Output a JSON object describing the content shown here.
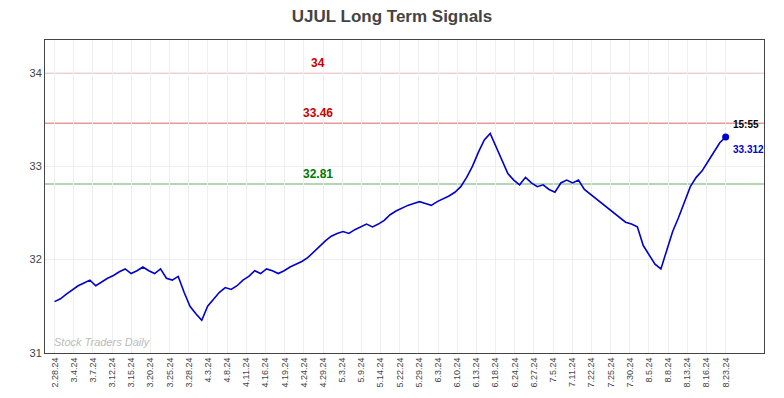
{
  "chart_data": {
    "type": "line",
    "title": "UJUL Long Term Signals",
    "x": [
      0,
      0.307,
      0.614,
      0.9211,
      1.2281,
      1.5351,
      1.8421,
      2.1491,
      2.4561,
      2.7632,
      3.0702,
      3.3772,
      3.6842,
      3.9912,
      4.2982,
      4.6053,
      4.9123,
      5.2193,
      5.5263,
      5.8333,
      6.1404,
      6.4474,
      6.7544,
      7.0614,
      7.3684,
      7.6754,
      7.9825,
      8.2895,
      8.5965,
      8.9035,
      9.2105,
      9.5175,
      9.8246,
      10.1316,
      10.4386,
      10.7456,
      11.0526,
      11.3596,
      11.6667,
      11.9737,
      12.2807,
      12.5877,
      12.8947,
      13.2018,
      13.5088,
      13.8158,
      14.1228,
      14.4298,
      14.7368,
      15.0439,
      15.3509,
      15.6579,
      15.9649,
      16.2719,
      16.5789,
      16.886,
      17.193,
      17.5,
      17.807,
      18.114,
      18.4211,
      18.7281,
      19.0351,
      19.3421,
      19.6491,
      19.9561,
      20.2632,
      20.5702,
      20.8772,
      21.1842,
      21.4912,
      21.7982,
      22.1053,
      22.4123,
      22.7193,
      23.0263,
      23.3333,
      23.6404,
      23.9474,
      24.2544,
      24.5614,
      24.8684,
      25.1754,
      25.4825,
      25.7895,
      26.0965,
      26.4035,
      26.7105,
      27.0175,
      27.3246,
      27.6316,
      27.9386,
      28.2456,
      28.5526,
      28.8596,
      29.1667,
      29.4737,
      29.7807,
      30.0877,
      30.3947,
      30.7018,
      31.0088,
      31.3158,
      31.6228,
      31.9298,
      32.2368,
      32.5439,
      32.8509,
      33.1579,
      33.4649,
      33.7719,
      34.0789,
      34.386,
      34.693,
      35
    ],
    "values": [
      31.55,
      31.58,
      31.63,
      31.68,
      31.72,
      31.75,
      31.78,
      31.72,
      31.76,
      31.8,
      31.83,
      31.87,
      31.9,
      31.85,
      31.88,
      31.92,
      31.88,
      31.85,
      31.9,
      31.8,
      31.78,
      31.82,
      31.65,
      31.5,
      31.42,
      31.35,
      31.5,
      31.58,
      31.65,
      31.7,
      31.68,
      31.72,
      31.78,
      31.82,
      31.88,
      31.85,
      31.9,
      31.88,
      31.85,
      31.88,
      31.92,
      31.95,
      31.98,
      32.02,
      32.08,
      32.15,
      32.2,
      32.25,
      32.28,
      32.3,
      32.28,
      32.32,
      32.35,
      32.38,
      32.35,
      32.38,
      32.42,
      32.48,
      32.52,
      32.55,
      32.58,
      32.6,
      32.62,
      32.6,
      32.58,
      32.62,
      32.65,
      32.68,
      32.72,
      32.78,
      32.88,
      33.0,
      33.15,
      33.28,
      33.35,
      33.2,
      33.05,
      32.92,
      32.85,
      32.8,
      32.88,
      32.82,
      32.78,
      32.8,
      32.75,
      32.72,
      32.82,
      32.85,
      32.82,
      32.85,
      32.75,
      32.7,
      32.65,
      32.6,
      32.55,
      32.5,
      32.45,
      32.4,
      32.38,
      32.35,
      32.15,
      32.05,
      31.95,
      31.9,
      32.1,
      32.3,
      32.45,
      32.62,
      32.78,
      32.88,
      32.95,
      33.05,
      33.15,
      33.25,
      33.312
    ],
    "color": "#0000cc",
    "last_point": {
      "x": 35,
      "y": 33.312,
      "time": "15:55"
    },
    "reference_lines": [
      {
        "value": 34.0,
        "label": "34",
        "color": "#cc0000"
      },
      {
        "value": 33.46,
        "label": "33.46",
        "color": "#cc0000"
      },
      {
        "value": 32.81,
        "label": "32.81",
        "color": "#007700"
      }
    ],
    "watermark": "Stock Traders Daily",
    "xlim": [
      -0.5,
      37.0
    ],
    "xticks": [
      {
        "value": 0,
        "label": "2.28.24"
      },
      {
        "value": 1,
        "label": "3.4.24"
      },
      {
        "value": 2,
        "label": "3.7.24"
      },
      {
        "value": 3,
        "label": "3.12.24"
      },
      {
        "value": 4,
        "label": "3.15.24"
      },
      {
        "value": 5,
        "label": "3.20.24"
      },
      {
        "value": 6,
        "label": "3.25.24"
      },
      {
        "value": 7,
        "label": "3.28.24"
      },
      {
        "value": 8,
        "label": "4.3.24"
      },
      {
        "value": 9,
        "label": "4.8.24"
      },
      {
        "value": 10,
        "label": "4.11.24"
      },
      {
        "value": 11,
        "label": "4.16.24"
      },
      {
        "value": 12,
        "label": "4.19.24"
      },
      {
        "value": 13,
        "label": "4.24.24"
      },
      {
        "value": 14,
        "label": "4.29.24"
      },
      {
        "value": 15,
        "label": "5.3.24"
      },
      {
        "value": 16,
        "label": "5.9.24"
      },
      {
        "value": 17,
        "label": "5.14.24"
      },
      {
        "value": 18,
        "label": "5.22.24"
      },
      {
        "value": 19,
        "label": "5.29.24"
      },
      {
        "value": 20,
        "label": "6.3.24"
      },
      {
        "value": 21,
        "label": "6.10.24"
      },
      {
        "value": 22,
        "label": "6.13.24"
      },
      {
        "value": 23,
        "label": "6.18.24"
      },
      {
        "value": 24,
        "label": "6.24.24"
      },
      {
        "value": 25,
        "label": "6.27.24"
      },
      {
        "value": 26,
        "label": "7.5.24"
      },
      {
        "value": 27,
        "label": "7.11.24"
      },
      {
        "value": 28,
        "label": "7.22.24"
      },
      {
        "value": 29,
        "label": "7.25.24"
      },
      {
        "value": 30,
        "label": "7.30.24"
      },
      {
        "value": 31,
        "label": "8.5.24"
      },
      {
        "value": 32,
        "label": "8.8.24"
      },
      {
        "value": 33,
        "label": "8.13.24"
      },
      {
        "value": 34,
        "label": "8.16.24"
      },
      {
        "value": 35,
        "label": "8.23.24"
      }
    ],
    "ylim": [
      31.0,
      34.35
    ],
    "yticks": [
      31,
      32,
      33,
      34
    ],
    "grid": true
  }
}
